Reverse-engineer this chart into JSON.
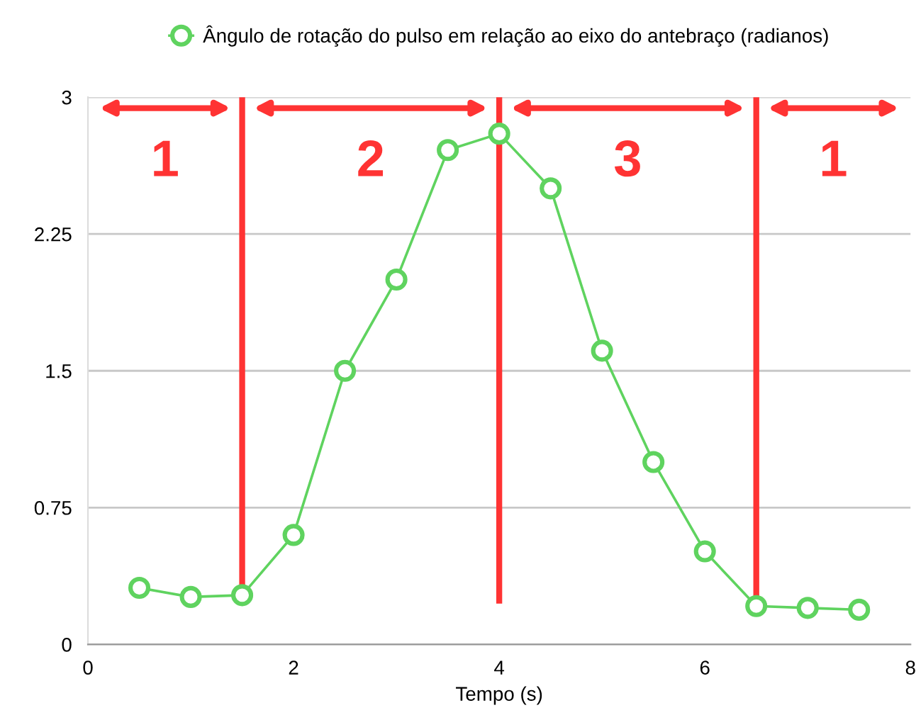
{
  "chart_data": {
    "type": "line",
    "xlabel": "Tempo (s)",
    "x": [
      0.5,
      1,
      1.5,
      2,
      2.5,
      3,
      3.5,
      4,
      4.5,
      5,
      5.5,
      6,
      6.5,
      7,
      7.5
    ],
    "series": [
      {
        "name": "Ângulo de rotação do pulso em relação ao eixo do antebraço (radianos)",
        "color": "#5fd35f",
        "values": [
          0.31,
          0.26,
          0.27,
          0.6,
          1.5,
          2.0,
          2.71,
          2.8,
          2.5,
          1.61,
          1.0,
          0.51,
          0.21,
          0.2,
          0.19
        ]
      }
    ],
    "xlim": [
      0,
      8
    ],
    "xticks": [
      0,
      2,
      4,
      6,
      8
    ],
    "ylim": [
      0,
      3
    ],
    "yticks": [
      0,
      0.75,
      1.5,
      2.25,
      3
    ],
    "grid": "y",
    "legend": "top",
    "marker": "circle",
    "line_style": "solid",
    "ref_lines": [
      {
        "axis": "x",
        "value": 1.5,
        "color": "#ff3333"
      },
      {
        "axis": "x",
        "value": 4,
        "color": "#ff3333"
      },
      {
        "axis": "x",
        "value": 6.5,
        "color": "#ff3333"
      }
    ],
    "annotations": [
      "1",
      "2",
      "3",
      "1"
    ]
  }
}
